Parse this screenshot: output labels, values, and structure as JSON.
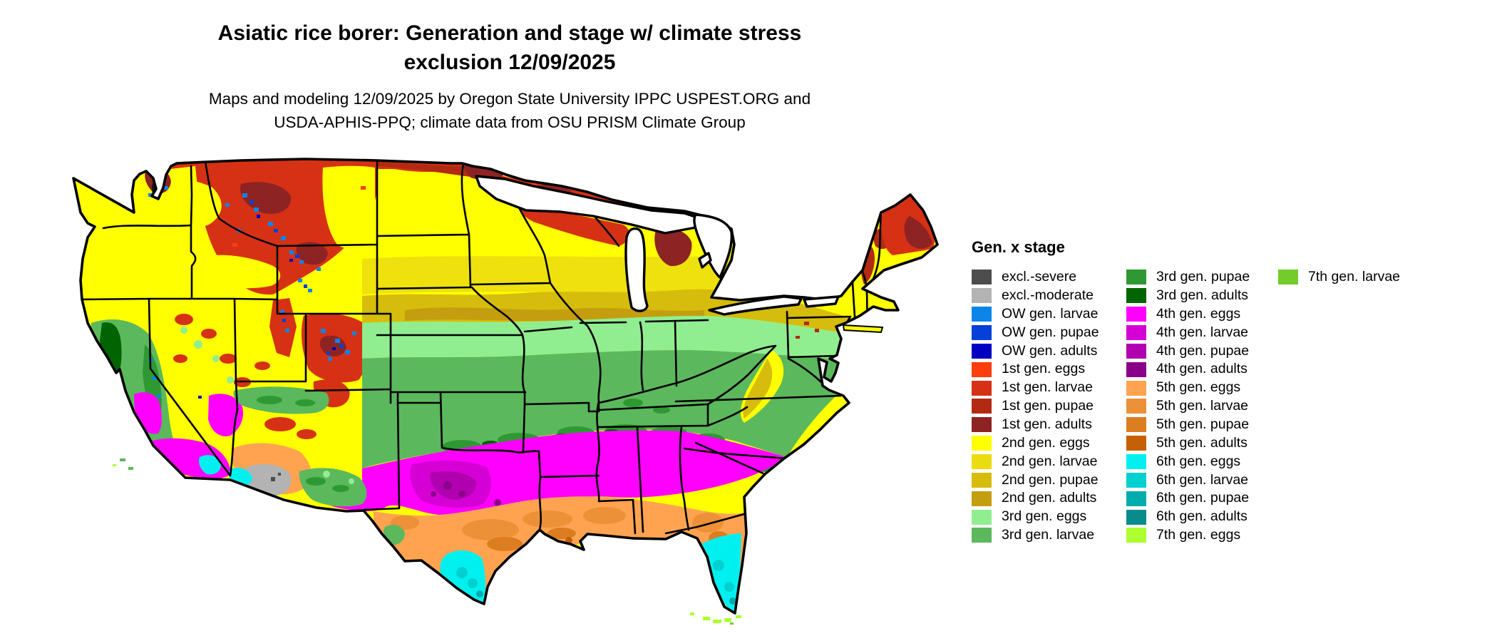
{
  "title": {
    "line1": "Asiatic rice borer: Generation and stage w/ climate stress",
    "line2": "exclusion 12/09/2025"
  },
  "subtitle": {
    "line1": "Maps and modeling 12/09/2025 by Oregon State University IPPC USPEST.ORG and",
    "line2": "USDA-APHIS-PPQ; climate data from OSU PRISM Climate Group"
  },
  "legend": {
    "title": "Gen. x stage",
    "columns": [
      [
        {
          "key": "excl_severe",
          "label": "excl.-severe",
          "color": "#4D4D4D"
        },
        {
          "key": "excl_moderate",
          "label": "excl.-moderate",
          "color": "#B3B3B3"
        },
        {
          "key": "ow_larvae",
          "label": "OW gen. larvae",
          "color": "#0B85E8"
        },
        {
          "key": "ow_pupae",
          "label": "OW gen. pupae",
          "color": "#0540D8"
        },
        {
          "key": "ow_adults",
          "label": "OW gen. adults",
          "color": "#0000C2"
        },
        {
          "key": "g1_eggs",
          "label": "1st gen. eggs",
          "color": "#FC3D0C"
        },
        {
          "key": "g1_larvae",
          "label": "1st gen. larvae",
          "color": "#D63115"
        },
        {
          "key": "g1_pupae",
          "label": "1st gen. pupae",
          "color": "#B22A12"
        },
        {
          "key": "g1_adults",
          "label": "1st gen. adults",
          "color": "#8E2323"
        },
        {
          "key": "g2_eggs",
          "label": "2nd gen. eggs",
          "color": "#FFFF00"
        },
        {
          "key": "g2_larvae",
          "label": "2nd gen. larvae",
          "color": "#EBDC0F"
        },
        {
          "key": "g2_pupae",
          "label": "2nd gen. pupae",
          "color": "#D6BC0C"
        },
        {
          "key": "g2_adults",
          "label": "2nd gen. adults",
          "color": "#C49E0E"
        },
        {
          "key": "g3_eggs",
          "label": "3rd gen. eggs",
          "color": "#90EE90"
        },
        {
          "key": "g3_larvae",
          "label": "3rd gen. larvae",
          "color": "#5CB85C"
        }
      ],
      [
        {
          "key": "g3_pupae",
          "label": "3rd gen. pupae",
          "color": "#2E9932"
        },
        {
          "key": "g3_adults",
          "label": "3rd gen. adults",
          "color": "#006400"
        },
        {
          "key": "g4_eggs",
          "label": "4th gen. eggs",
          "color": "#FF00FF"
        },
        {
          "key": "g4_larvae",
          "label": "4th gen. larvae",
          "color": "#D400D4"
        },
        {
          "key": "g4_pupae",
          "label": "4th gen. pupae",
          "color": "#B000B0"
        },
        {
          "key": "g4_adults",
          "label": "4th gen. adults",
          "color": "#8B008B"
        },
        {
          "key": "g5_eggs",
          "label": "5th gen. eggs",
          "color": "#FFA351"
        },
        {
          "key": "g5_larvae",
          "label": "5th gen. larvae",
          "color": "#ED9138"
        },
        {
          "key": "g5_pupae",
          "label": "5th gen. pupae",
          "color": "#DB7D20"
        },
        {
          "key": "g5_adults",
          "label": "5th gen. adults",
          "color": "#C66005"
        },
        {
          "key": "g6_eggs",
          "label": "6th gen. eggs",
          "color": "#00F0F0"
        },
        {
          "key": "g6_larvae",
          "label": "6th gen. larvae",
          "color": "#00D0D0"
        },
        {
          "key": "g6_pupae",
          "label": "6th gen. pupae",
          "color": "#00ACAC"
        },
        {
          "key": "g6_adults",
          "label": "6th gen. adults",
          "color": "#088B8B"
        },
        {
          "key": "g7_eggs",
          "label": "7th gen. eggs",
          "color": "#ADFF2F"
        }
      ],
      [
        {
          "key": "g7_larvae",
          "label": "7th gen. larvae",
          "color": "#74CC2C"
        }
      ]
    ]
  },
  "map": {
    "border_color": "#000000",
    "water_color": "#ffffff"
  }
}
